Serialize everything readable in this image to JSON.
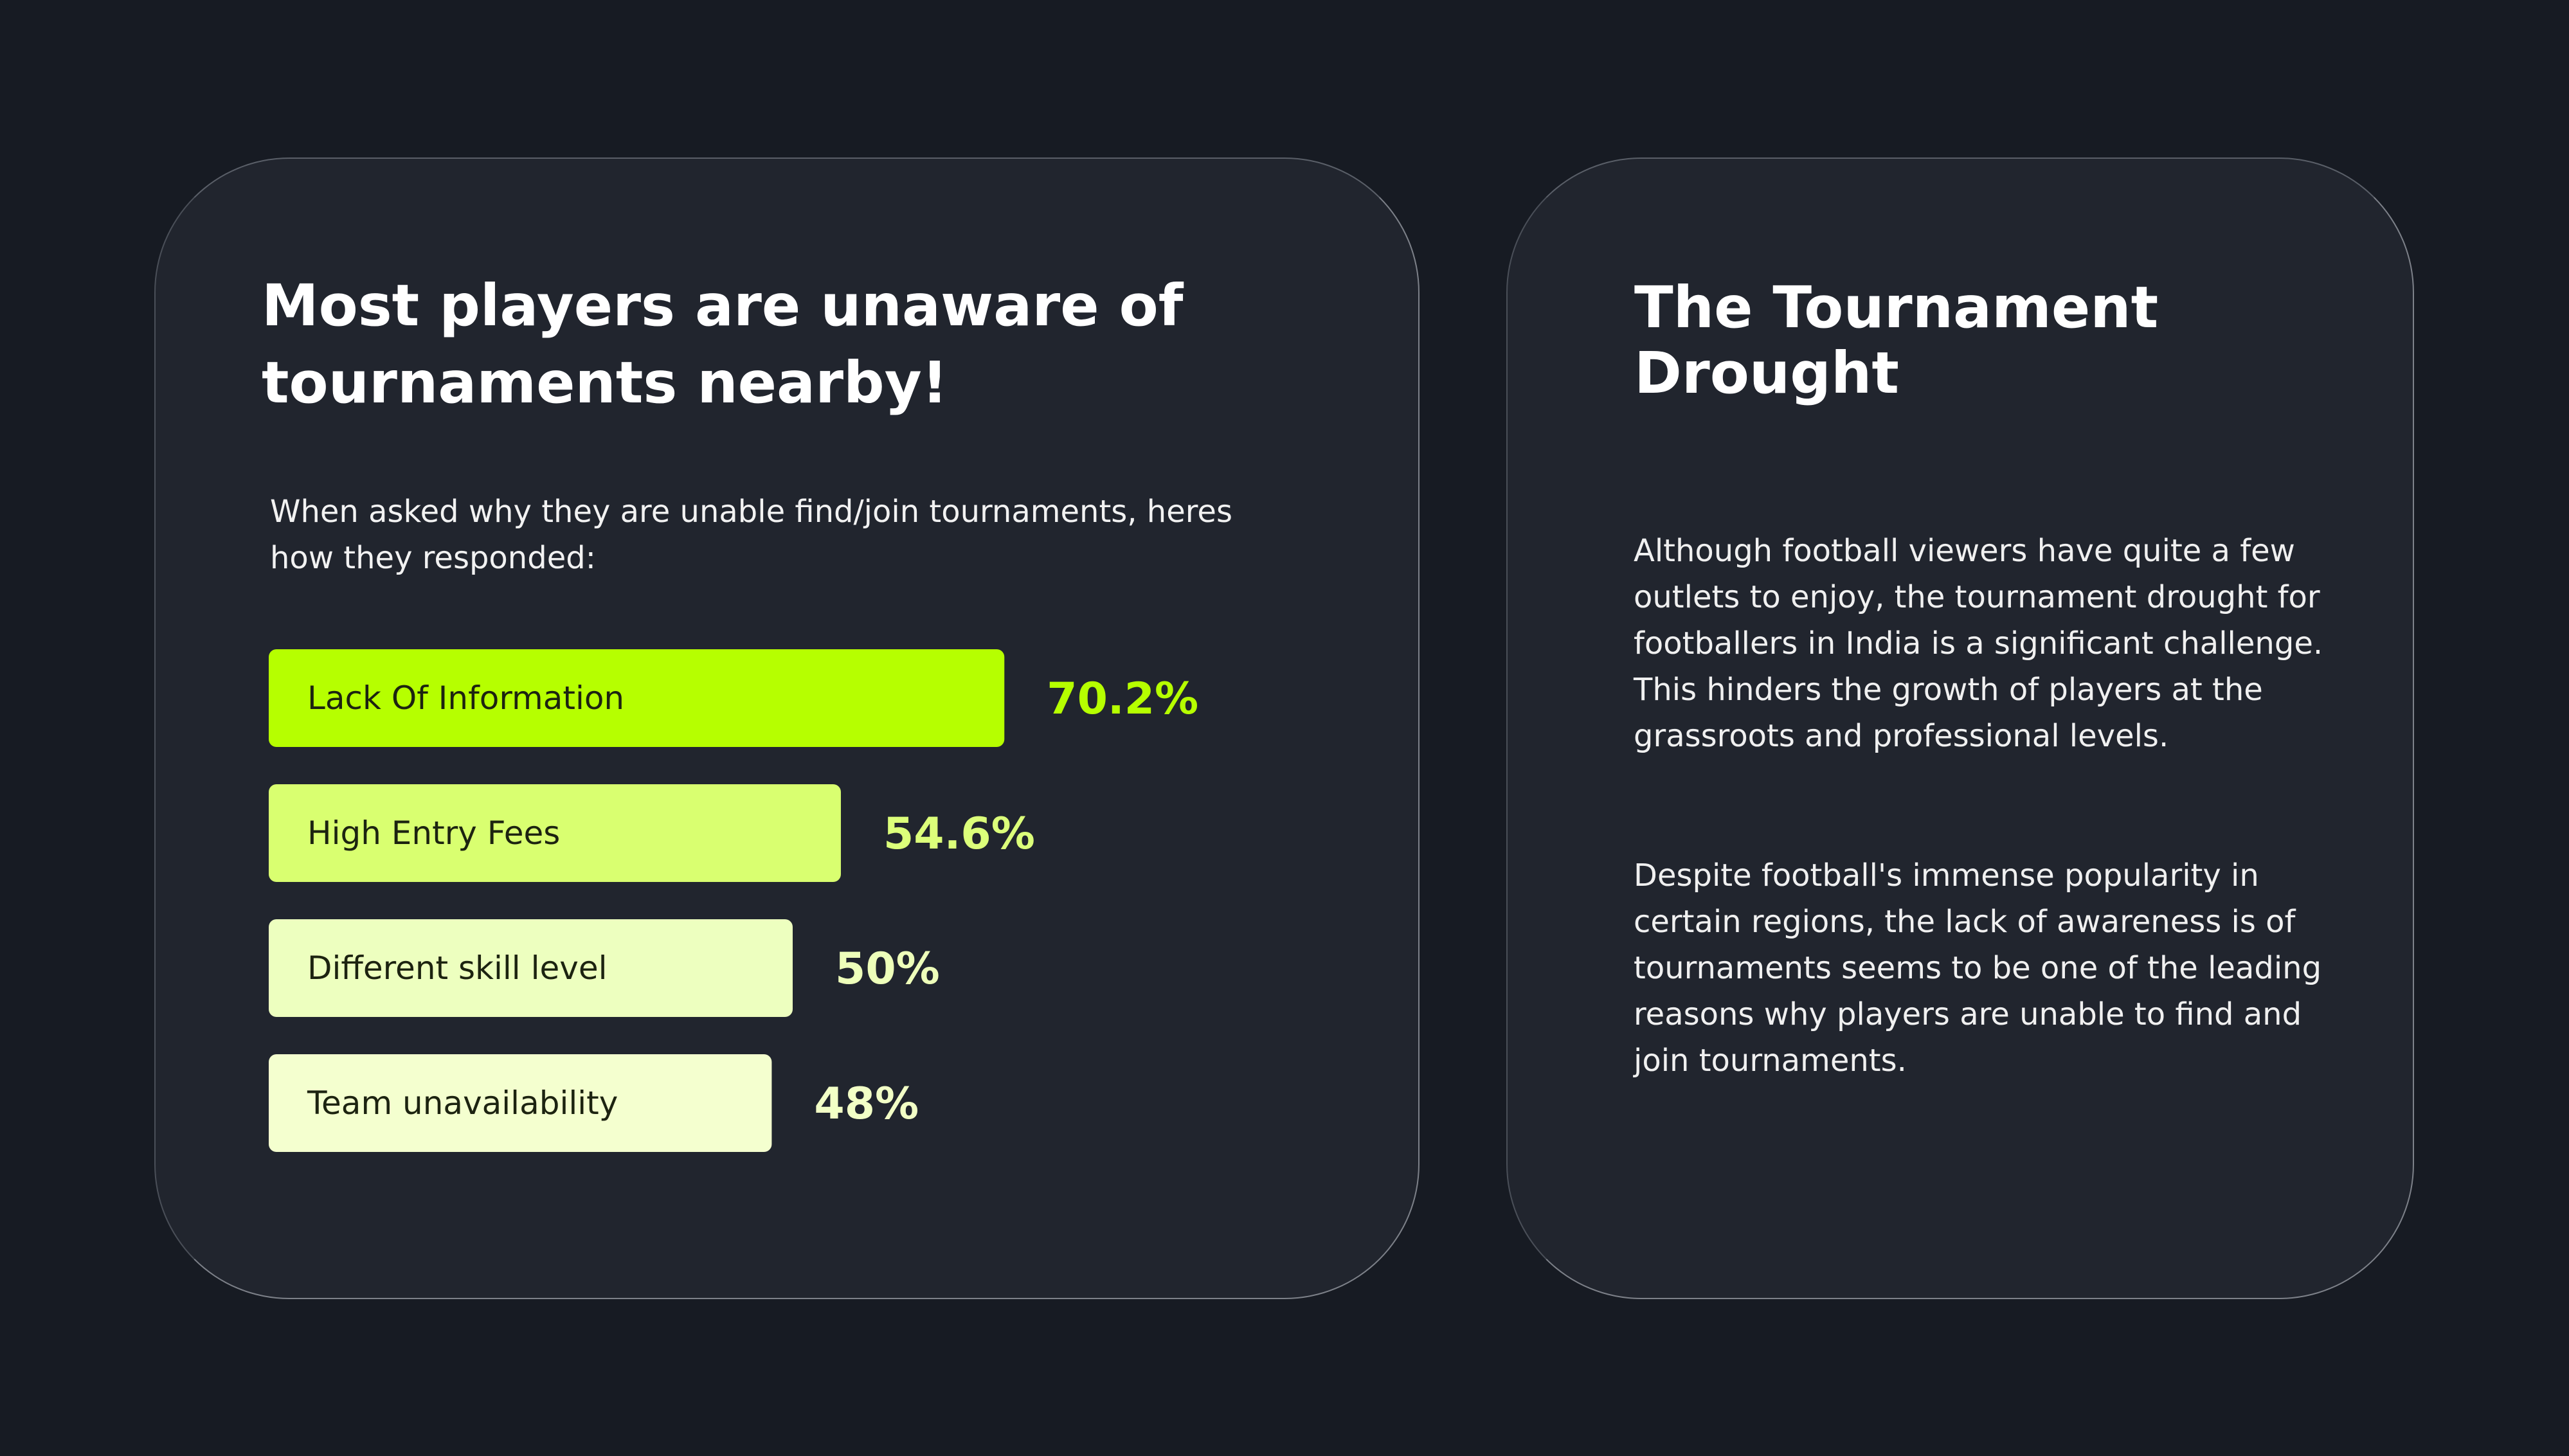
{
  "left_card": {
    "title": "Most players are unaware of tournaments nearby!",
    "subtitle": "When asked why they are unable find/join tournaments, heres how they responded:"
  },
  "right_card": {
    "title": "The Tournament Drought",
    "paragraphs": [
      "Although football viewers have quite a few outlets to enjoy, the tournament drought for footballers in India is a significant challenge. This hinders the growth of players at the grassroots and professional levels.",
      "Despite football's immense popularity in certain regions, the lack of awareness is of tournaments seems to be one of the leading reasons why players are unable to find and join tournaments."
    ]
  },
  "chart_data": {
    "type": "bar",
    "orientation": "horizontal",
    "categories": [
      "Lack Of Information",
      "High Entry Fees",
      "Different skill level",
      "Team unavailability"
    ],
    "values": [
      70.2,
      54.6,
      50,
      48
    ],
    "value_labels": [
      "70.2%",
      "54.6%",
      "50%",
      "48%"
    ],
    "bar_colors": [
      "#b6ff00",
      "#d9ff70",
      "#edffbf",
      "#f4ffcf"
    ],
    "label_colors": [
      "#b6ff00",
      "#dcff7a",
      "#eeffba",
      "#f2ffc6"
    ],
    "category_text_color": "#1c2310",
    "grid": false
  }
}
